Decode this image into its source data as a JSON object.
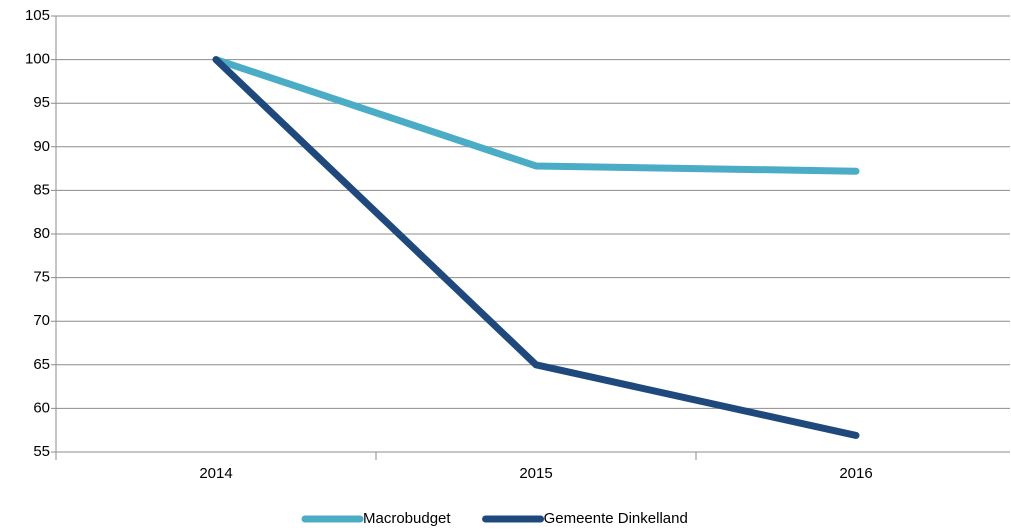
{
  "chart_data": {
    "type": "line",
    "categories": [
      "2014",
      "2015",
      "2016"
    ],
    "series": [
      {
        "name": "Macrobudget",
        "color": "#4bacc6",
        "values": [
          100,
          87.8,
          87.2
        ]
      },
      {
        "name": "Gemeente Dinkelland",
        "color": "#1f497d",
        "values": [
          100,
          65,
          56.9
        ]
      }
    ],
    "ylim": [
      55,
      105
    ],
    "yticks": [
      55,
      60,
      65,
      70,
      75,
      80,
      85,
      90,
      95,
      100,
      105
    ],
    "grid": true,
    "legend": "bottom"
  }
}
